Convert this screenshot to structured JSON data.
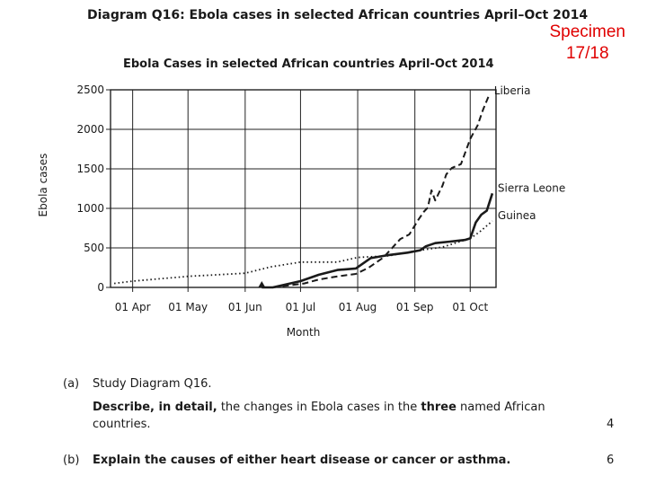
{
  "header": {
    "diagram_title": "Diagram Q16: Ebola cases in selected African countries April–Oct 2014",
    "specimen_line1": "Specimen",
    "specimen_line2": "17/18"
  },
  "questions": [
    {
      "label": "(a)",
      "line1": "Study Diagram Q16.",
      "line2_parts": [
        "Describe, in detail,",
        " the changes in Ebola cases in the ",
        "three",
        " named African"
      ],
      "line3": "countries.",
      "marks": "4"
    },
    {
      "label": "(b)",
      "line1": "Explain the causes of either heart disease or cancer or asthma.",
      "marks": "6"
    }
  ],
  "chart_data": {
    "type": "line",
    "title": "Ebola Cases in selected African countries April-Oct 2014",
    "xlabel": "Month",
    "ylabel": "Ebola cases",
    "ylim": [
      0,
      2500
    ],
    "yticks": [
      0,
      500,
      1000,
      1500,
      2000,
      2500
    ],
    "xlim": [
      "2014-03-20",
      "2014-10-15"
    ],
    "xticks": [
      {
        "date": "2014-04-01",
        "label": "01 Apr"
      },
      {
        "date": "2014-05-01",
        "label": "01 May"
      },
      {
        "date": "2014-06-01",
        "label": "01 Jun"
      },
      {
        "date": "2014-07-01",
        "label": "01 Jul"
      },
      {
        "date": "2014-08-01",
        "label": "01 Aug"
      },
      {
        "date": "2014-09-01",
        "label": "01 Sep"
      },
      {
        "date": "2014-10-01",
        "label": "01 Oct"
      }
    ],
    "grid": true,
    "series": [
      {
        "name": "Liberia",
        "style": "dashed",
        "x": [
          "2014-06-16",
          "2014-07-03",
          "2014-07-11",
          "2014-07-21",
          "2014-07-31",
          "2014-08-07",
          "2014-08-15",
          "2014-08-24",
          "2014-08-29",
          "2014-09-03",
          "2014-09-06",
          "2014-09-08",
          "2014-09-10",
          "2014-09-12",
          "2014-09-16",
          "2014-09-18",
          "2014-09-21",
          "2014-09-26",
          "2014-10-01",
          "2014-10-05",
          "2014-10-08",
          "2014-10-11"
        ],
        "values": [
          0,
          50,
          100,
          140,
          170,
          250,
          380,
          610,
          670,
          860,
          960,
          1010,
          1230,
          1100,
          1290,
          1430,
          1510,
          1560,
          1880,
          2050,
          2250,
          2420
        ]
      },
      {
        "name": "Sierra Leone",
        "style": "solid",
        "x": [
          "2014-06-10",
          "2014-06-16",
          "2014-07-01",
          "2014-07-11",
          "2014-07-21",
          "2014-07-31",
          "2014-08-08",
          "2014-08-18",
          "2014-08-28",
          "2014-09-04",
          "2014-09-07",
          "2014-09-12",
          "2014-09-20",
          "2014-09-28",
          "2014-10-01",
          "2014-10-04",
          "2014-10-07",
          "2014-10-10",
          "2014-10-13"
        ],
        "values": [
          0,
          0,
          80,
          160,
          220,
          240,
          370,
          410,
          440,
          470,
          520,
          560,
          580,
          600,
          620,
          820,
          920,
          970,
          1190
        ]
      },
      {
        "name": "Guinea",
        "style": "dotted",
        "x": [
          "2014-03-22",
          "2014-04-01",
          "2014-05-01",
          "2014-06-01",
          "2014-06-15",
          "2014-07-01",
          "2014-07-21",
          "2014-08-01",
          "2014-08-18",
          "2014-09-01",
          "2014-09-16",
          "2014-10-01",
          "2014-10-06",
          "2014-10-13"
        ],
        "values": [
          50,
          80,
          140,
          180,
          260,
          320,
          320,
          380,
          400,
          460,
          510,
          620,
          700,
          840
        ]
      }
    ]
  }
}
